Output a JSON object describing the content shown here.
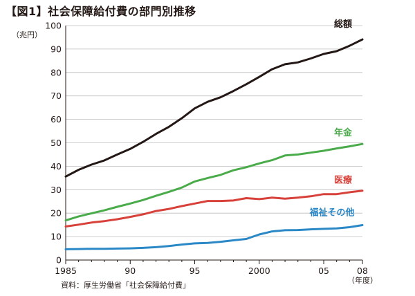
{
  "chart_data": {
    "type": "line",
    "title": "【図1】社会保障給付費の部門別推移",
    "source": "資料：厚生労働省「社会保障給付費」",
    "ylabel": "（兆円）",
    "xlabel": "（年度）",
    "ylim": [
      0,
      100
    ],
    "xlim": [
      1985,
      2008
    ],
    "y_ticks": [
      0,
      10,
      20,
      30,
      40,
      50,
      60,
      70,
      80,
      90,
      100
    ],
    "x_ticks": [
      {
        "year": 1985,
        "label": "1985"
      },
      {
        "year": 1990,
        "label": "90"
      },
      {
        "year": 1995,
        "label": "95"
      },
      {
        "year": 2000,
        "label": "2000"
      },
      {
        "year": 2005,
        "label": "05"
      },
      {
        "year": 2008,
        "label": "08"
      }
    ],
    "grid": true,
    "legend": "inline",
    "x": [
      1985,
      1986,
      1987,
      1988,
      1989,
      1990,
      1991,
      1992,
      1993,
      1994,
      1995,
      1996,
      1997,
      1998,
      1999,
      2000,
      2001,
      2002,
      2003,
      2004,
      2005,
      2006,
      2007,
      2008
    ],
    "series": [
      {
        "name": "総額",
        "color": "#231815",
        "values": [
          35.6,
          38.5,
          40.7,
          42.5,
          45.0,
          47.4,
          50.4,
          53.8,
          56.8,
          60.5,
          64.7,
          67.5,
          69.4,
          72.1,
          75.0,
          78.1,
          81.4,
          83.5,
          84.3,
          86.0,
          87.9,
          89.1,
          91.4,
          94.1
        ]
      },
      {
        "name": "年金",
        "color": "#4aab4b",
        "values": [
          16.9,
          18.6,
          19.9,
          21.2,
          22.7,
          24.1,
          25.6,
          27.4,
          29.1,
          30.9,
          33.5,
          35.0,
          36.3,
          38.3,
          39.6,
          41.2,
          42.6,
          44.6,
          45.0,
          45.8,
          46.6,
          47.6,
          48.5,
          49.5
        ]
      },
      {
        "name": "医療",
        "color": "#d7413a",
        "values": [
          14.3,
          15.1,
          16.0,
          16.6,
          17.4,
          18.4,
          19.5,
          20.9,
          21.8,
          23.0,
          24.1,
          25.2,
          25.2,
          25.4,
          26.4,
          26.0,
          26.6,
          26.2,
          26.6,
          27.2,
          28.1,
          28.1,
          28.9,
          29.6
        ]
      },
      {
        "name": "福祉その他",
        "color": "#2b88c6",
        "values": [
          4.6,
          4.7,
          4.8,
          4.8,
          4.9,
          5.0,
          5.2,
          5.5,
          6.0,
          6.6,
          7.1,
          7.3,
          7.8,
          8.4,
          9.0,
          10.9,
          12.2,
          12.7,
          12.8,
          13.1,
          13.3,
          13.5,
          14.0,
          14.9
        ]
      }
    ]
  }
}
